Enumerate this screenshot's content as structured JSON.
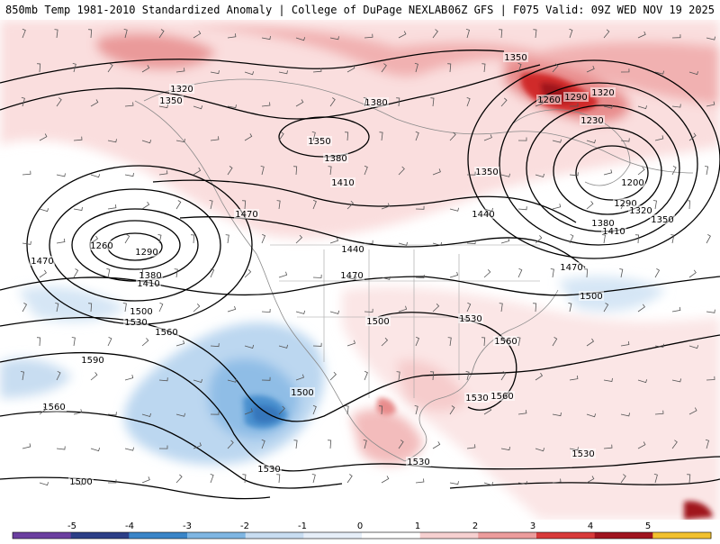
{
  "header": {
    "title_left": "850mb Temp 1981-2010 Standardized Anomaly | College of DuPage NEXLAB",
    "title_right": "06Z GFS | F075 Valid: 09Z WED NOV 19 2025"
  },
  "colorbar": {
    "ticks": [
      "-5",
      "-4",
      "-3",
      "-2",
      "-1",
      "0",
      "1",
      "2",
      "3",
      "4",
      "5"
    ],
    "colors": [
      "#6b3fa0",
      "#2c3f87",
      "#3a85c8",
      "#7fb6e3",
      "#c8ddf1",
      "#ffffff",
      "#f6d0d0",
      "#ec9c9c",
      "#d83a3a",
      "#a0141f",
      "#f2c12e"
    ]
  },
  "contours": {
    "labels": [
      {
        "text": "1320"
      },
      {
        "text": "1350"
      },
      {
        "text": "1380"
      },
      {
        "text": "1350"
      },
      {
        "text": "1380"
      },
      {
        "text": "1410"
      },
      {
        "text": "1350"
      },
      {
        "text": "1290"
      },
      {
        "text": "1260"
      },
      {
        "text": "1320"
      },
      {
        "text": "1230"
      },
      {
        "text": "1200"
      },
      {
        "text": "1290"
      },
      {
        "text": "1320"
      },
      {
        "text": "1350"
      },
      {
        "text": "1380"
      },
      {
        "text": "1410"
      },
      {
        "text": "1350"
      },
      {
        "text": "1260"
      },
      {
        "text": "1290"
      },
      {
        "text": "1380"
      },
      {
        "text": "1410"
      },
      {
        "text": "1470"
      },
      {
        "text": "1470"
      },
      {
        "text": "1440"
      },
      {
        "text": "1470"
      },
      {
        "text": "1440"
      },
      {
        "text": "1470"
      },
      {
        "text": "1500"
      },
      {
        "text": "1530"
      },
      {
        "text": "1500"
      },
      {
        "text": "1500"
      },
      {
        "text": "1530"
      },
      {
        "text": "1560"
      },
      {
        "text": "1590"
      },
      {
        "text": "1560"
      },
      {
        "text": "1500"
      },
      {
        "text": "1530"
      },
      {
        "text": "1560"
      },
      {
        "text": "1560"
      },
      {
        "text": "1530"
      },
      {
        "text": "1530"
      },
      {
        "text": "1530"
      },
      {
        "text": "1500"
      }
    ]
  }
}
